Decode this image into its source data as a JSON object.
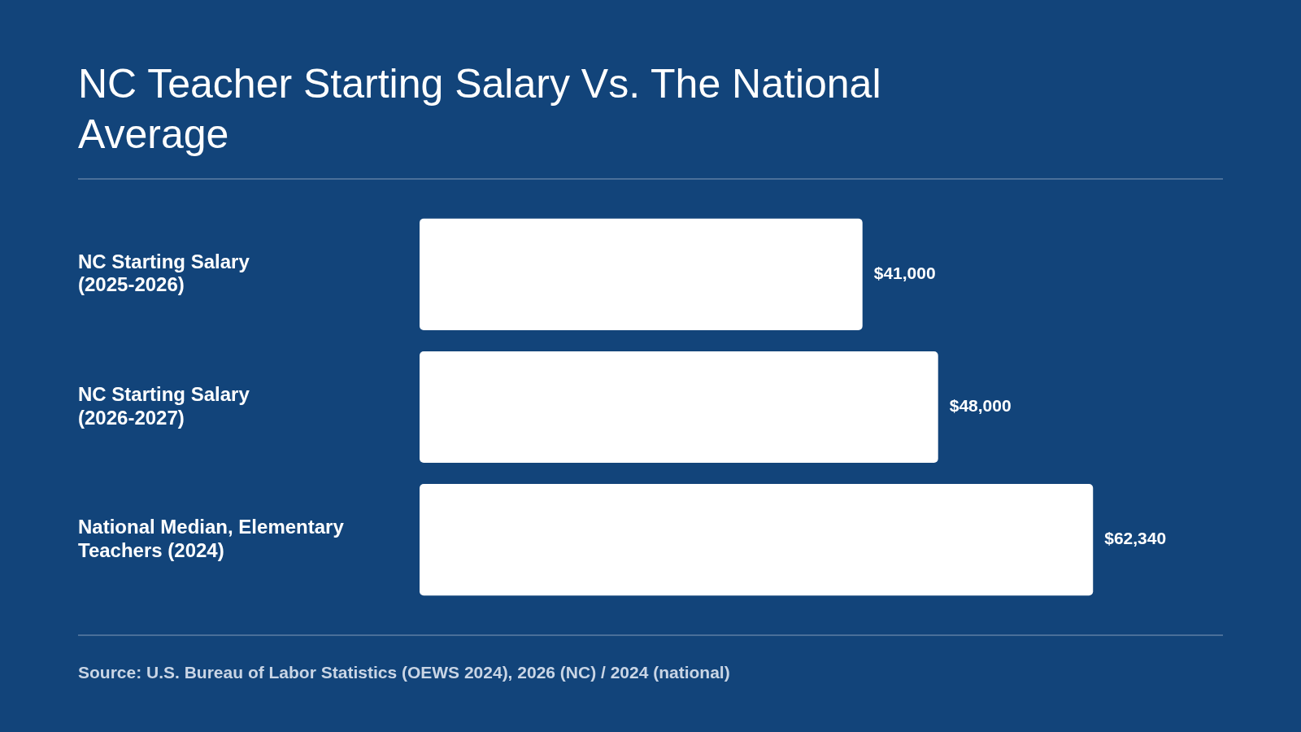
{
  "chart_data": {
    "type": "bar",
    "orientation": "horizontal",
    "title": "NC Teacher Starting Salary Vs. The National Average",
    "categories": [
      "NC Starting Salary (2025-2026)",
      "NC Starting Salary (2026-2027)",
      "National Median, Elementary Teachers (2024)"
    ],
    "values": [
      41000,
      48000,
      62340
    ],
    "color": "#ffffff",
    "value_labels": [
      "$41,000",
      "$48,000",
      "$62,340"
    ],
    "tick_labels": "y",
    "legend": false,
    "annotations": [
      "Source: U.S. Bureau of Labor Statistics (OEWS 2024), 2026 (NC) / 2024 (national)"
    ]
  }
}
